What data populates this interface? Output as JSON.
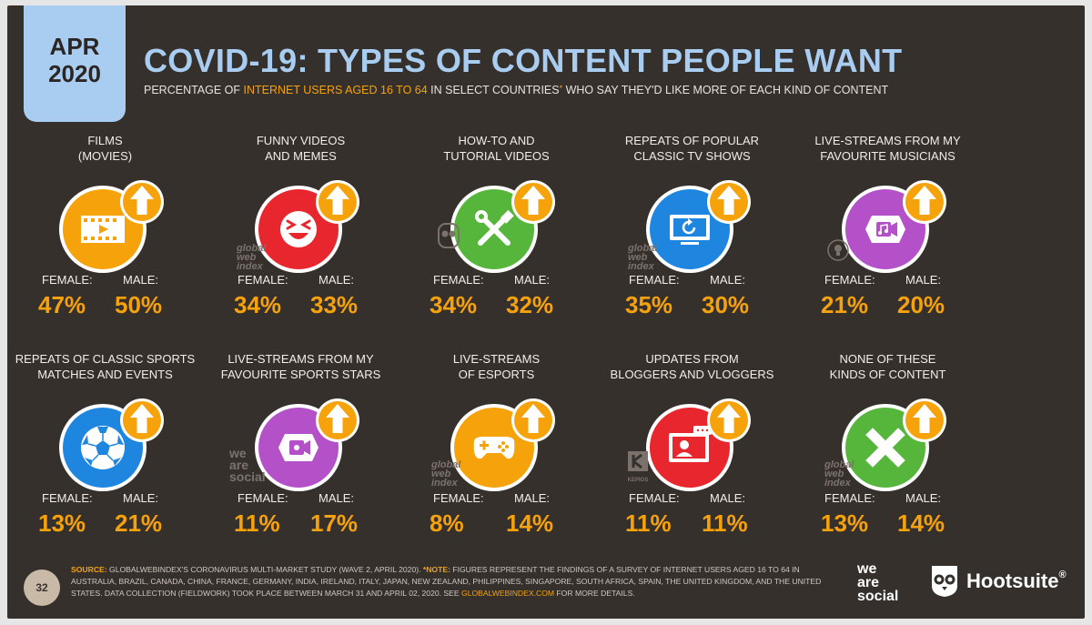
{
  "header": {
    "date_month": "APR",
    "date_year": "2020",
    "title": "COVID-19: TYPES OF CONTENT PEOPLE WANT",
    "subtitle_pre": "PERCENTAGE OF ",
    "subtitle_highlight": "INTERNET USERS AGED 16 TO 64",
    "subtitle_mid": " IN SELECT COUNTRIES",
    "subtitle_star": "*",
    "subtitle_post": " WHO SAY THEY'D LIKE MORE OF EACH KIND OF CONTENT"
  },
  "labels": {
    "female": "FEMALE:",
    "male": "MALE:"
  },
  "categories": [
    {
      "line1": "FILMS",
      "line2": "(MOVIES)",
      "icon": "film-icon",
      "color": "#f6a20a",
      "female": "47%",
      "male": "50%"
    },
    {
      "line1": "FUNNY VIDEOS",
      "line2": "AND MEMES",
      "icon": "laughing-face-icon",
      "color": "#e8262d",
      "female": "34%",
      "male": "33%"
    },
    {
      "line1": "HOW-TO AND",
      "line2": "TUTORIAL VIDEOS",
      "icon": "tools-icon",
      "color": "#55b63b",
      "female": "34%",
      "male": "32%"
    },
    {
      "line1": "REPEATS OF POPULAR",
      "line2": "CLASSIC TV SHOWS",
      "icon": "tv-replay-icon",
      "color": "#1f86e0",
      "female": "35%",
      "male": "30%"
    },
    {
      "line1": "LIVE-STREAMS FROM MY",
      "line2": "FAVOURITE MUSICIANS",
      "icon": "music-camera-icon",
      "color": "#b451c8",
      "female": "21%",
      "male": "20%"
    },
    {
      "line1": "REPEATS OF CLASSIC SPORTS",
      "line2": "MATCHES AND EVENTS",
      "icon": "soccer-ball-icon",
      "color": "#1f86e0",
      "female": "13%",
      "male": "21%"
    },
    {
      "line1": "LIVE-STREAMS FROM MY",
      "line2": "FAVOURITE SPORTS STARS",
      "icon": "video-camera-icon",
      "color": "#b451c8",
      "female": "11%",
      "male": "17%"
    },
    {
      "line1": "LIVE-STREAMS",
      "line2": "OF ESPORTS",
      "icon": "gamepad-icon",
      "color": "#f6a20a",
      "female": "8%",
      "male": "14%"
    },
    {
      "line1": "UPDATES FROM",
      "line2": "BLOGGERS AND VLOGGERS",
      "icon": "vlogger-icon",
      "color": "#e8262d",
      "female": "11%",
      "male": "11%"
    },
    {
      "line1": "NONE OF THESE",
      "line2": "KINDS OF CONTENT",
      "icon": "cross-icon",
      "color": "#55b63b",
      "female": "13%",
      "male": "14%"
    }
  ],
  "chart_data": {
    "type": "table",
    "title": "COVID-19: TYPES OF CONTENT PEOPLE WANT",
    "columns": [
      "FEMALE",
      "MALE"
    ],
    "rows": [
      {
        "category": "FILMS (MOVIES)",
        "female": 47,
        "male": 50
      },
      {
        "category": "FUNNY VIDEOS AND MEMES",
        "female": 34,
        "male": 33
      },
      {
        "category": "HOW-TO AND TUTORIAL VIDEOS",
        "female": 34,
        "male": 32
      },
      {
        "category": "REPEATS OF POPULAR CLASSIC TV SHOWS",
        "female": 35,
        "male": 30
      },
      {
        "category": "LIVE-STREAMS FROM MY FAVOURITE MUSICIANS",
        "female": 21,
        "male": 20
      },
      {
        "category": "REPEATS OF CLASSIC SPORTS MATCHES AND EVENTS",
        "female": 13,
        "male": 21
      },
      {
        "category": "LIVE-STREAMS FROM MY FAVOURITE SPORTS STARS",
        "female": 11,
        "male": 17
      },
      {
        "category": "LIVE-STREAMS OF ESPORTS",
        "female": 8,
        "male": 14
      },
      {
        "category": "UPDATES FROM BLOGGERS AND VLOGGERS",
        "female": 11,
        "male": 11
      },
      {
        "category": "NONE OF THESE KINDS OF CONTENT",
        "female": 13,
        "male": 14
      }
    ]
  },
  "watermarks": {
    "gwi_1": "global",
    "gwi_2": "web",
    "gwi_3": "index",
    "was_1": "we",
    "was_2": "are",
    "was_3": "social",
    "kepios": "KEPIOS"
  },
  "footer": {
    "page_number": "32",
    "source_label": "SOURCE:",
    "source_text": " GLOBALWEBINDEX'S CORONAVIRUS MULTI-MARKET STUDY (WAVE 2, APRIL 2020).",
    "note_label": " *NOTE:",
    "note_text": " FIGURES REPRESENT THE FINDINGS OF A SURVEY OF INTERNET USERS AGED 16 TO 64 IN AUSTRALIA, BRAZIL, CANADA, CHINA, FRANCE, GERMANY, INDIA, IRELAND, ITALY, JAPAN, NEW ZEALAND, PHILIPPINES, SINGAPORE, SOUTH AFRICA, SPAIN, THE UNITED KINGDOM, AND THE UNITED STATES. DATA COLLECTION (FIELDWORK) TOOK PLACE BETWEEN MARCH 31 AND APRIL 02, 2020. SEE",
    "link_text": " GLOBALWEBINDEX.COM",
    "tail_text": " FOR MORE DETAILS.",
    "logo_we": "we",
    "logo_are": "are",
    "logo_social": "social",
    "logo_hootsuite": "Hootsuite",
    "logo_reg": "®"
  }
}
